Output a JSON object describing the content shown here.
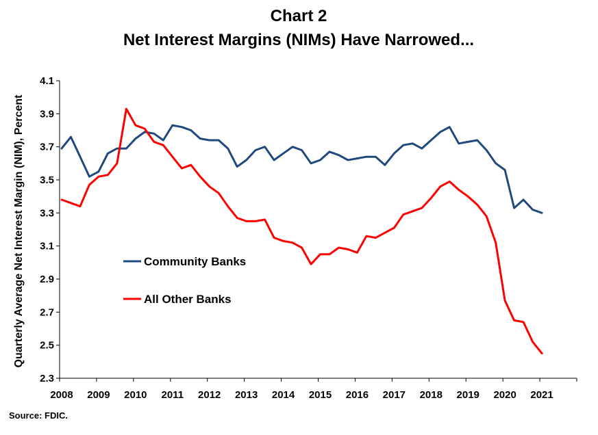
{
  "chart_data": {
    "type": "line",
    "title_lines": [
      "Chart 2",
      "Net Interest Margins (NIMs) Have Narrowed..."
    ],
    "ylabel": "Quarterly Average Net Interest Margin (NIM), Percent",
    "xlabel": "",
    "ylim": [
      2.3,
      4.1
    ],
    "y_ticks": [
      2.3,
      2.5,
      2.7,
      2.9,
      3.1,
      3.3,
      3.5,
      3.7,
      3.9,
      4.1
    ],
    "x_tick_labels": [
      "2008",
      "2009",
      "2010",
      "2011",
      "2012",
      "2013",
      "2014",
      "2015",
      "2016",
      "2017",
      "2018",
      "2019",
      "2020",
      "2021"
    ],
    "x_start_year": 2008,
    "quarters_per_year": 4,
    "grid": false,
    "legend_placement": "center-left",
    "series": [
      {
        "name": "Community Banks",
        "color": "#1F497D",
        "values": [
          3.69,
          3.76,
          3.64,
          3.52,
          3.55,
          3.66,
          3.69,
          3.69,
          3.75,
          3.79,
          3.78,
          3.74,
          3.83,
          3.82,
          3.8,
          3.75,
          3.74,
          3.74,
          3.69,
          3.58,
          3.62,
          3.68,
          3.7,
          3.62,
          3.66,
          3.7,
          3.68,
          3.6,
          3.62,
          3.67,
          3.65,
          3.62,
          3.63,
          3.64,
          3.64,
          3.59,
          3.66,
          3.71,
          3.72,
          3.69,
          3.74,
          3.79,
          3.82,
          3.72,
          3.73,
          3.74,
          3.68,
          3.6,
          3.56,
          3.33,
          3.38,
          3.32,
          3.3
        ]
      },
      {
        "name": "All Other Banks",
        "color": "#FF0000",
        "values": [
          3.38,
          3.36,
          3.34,
          3.47,
          3.52,
          3.53,
          3.6,
          3.93,
          3.83,
          3.81,
          3.73,
          3.71,
          3.64,
          3.57,
          3.59,
          3.52,
          3.46,
          3.42,
          3.34,
          3.27,
          3.25,
          3.25,
          3.26,
          3.15,
          3.13,
          3.12,
          3.09,
          2.99,
          3.05,
          3.05,
          3.09,
          3.08,
          3.06,
          3.16,
          3.15,
          3.18,
          3.21,
          3.29,
          3.31,
          3.33,
          3.39,
          3.46,
          3.49,
          3.44,
          3.4,
          3.35,
          3.28,
          3.12,
          2.77,
          2.65,
          2.64,
          2.52,
          2.45
        ]
      }
    ]
  },
  "source": "Source: FDIC."
}
